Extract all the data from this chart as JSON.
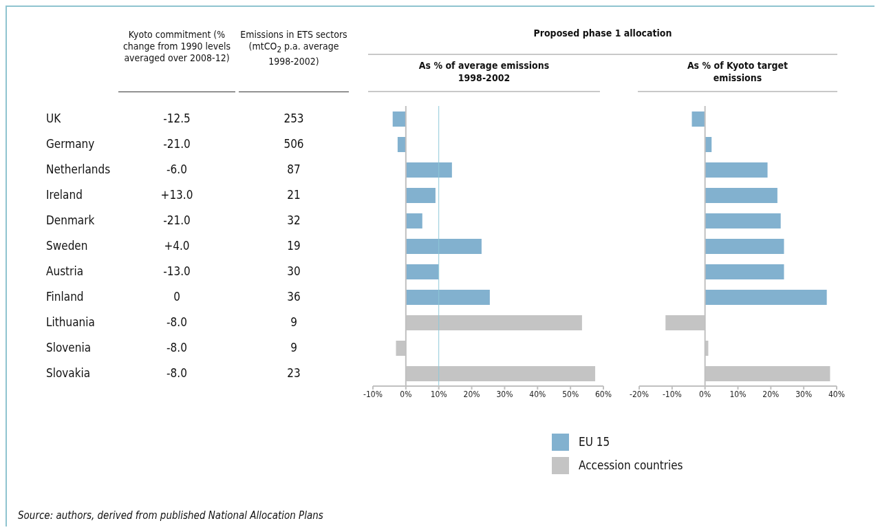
{
  "chart_data": [
    {
      "type": "other",
      "categories": [
        "UK",
        "Germany",
        "Netherlands",
        "Ireland",
        "Denmark",
        "Sweden",
        "Austria",
        "Finland",
        "Lithuania",
        "Slovenia",
        "Slovakia"
      ],
      "data_labels": true,
      "series": [
        {
          "name": "Kyoto commitment (% change from 1990 levels averaged over 2008-12)",
          "values": [
            -12.5,
            -21.0,
            -6.0,
            13.0,
            -21.0,
            4.0,
            -13.0,
            0,
            -8.0,
            -8.0,
            -8.0
          ],
          "value_labels": [
            "-12.5",
            "-21.0",
            "-6.0",
            "+13.0",
            "-21.0",
            "+4.0",
            "-13.0",
            "0",
            "-8.0",
            "-8.0",
            "-8.0"
          ]
        },
        {
          "name": "Emissions in ETS sectors (mtCO$_{2}$ p.a. average 1998-2002)",
          "values": [
            253,
            506,
            87,
            21,
            32,
            19,
            30,
            36,
            9,
            9,
            23
          ]
        }
      ],
      "annotations": [
        "Source: authors, derived from published National Allocation Plans"
      ]
    },
    {
      "type": "bar",
      "orientation": "horizontal",
      "stacked": true,
      "title": "Proposed phase 1 allocation",
      "subtitle": "As % of average emissions 1998-2002",
      "categories": [
        null,
        null,
        null,
        null,
        null,
        null,
        null,
        null,
        null,
        null,
        null
      ],
      "tick_labels": "x",
      "legend": "bottom",
      "series": [
        {
          "name": "EU 15",
          "color": "#82b1cf",
          "values": [
            -4,
            -2.5,
            14,
            9,
            5,
            23,
            10,
            25.5,
            null,
            null,
            null
          ]
        },
        {
          "name": "Accession countries",
          "color": "#c4c4c4",
          "values": [
            null,
            null,
            null,
            null,
            null,
            null,
            null,
            null,
            53.5,
            -3,
            57.5
          ]
        }
      ],
      "xlim": [
        -10,
        60
      ],
      "xticks": [
        {
          "value": -10,
          "label": "-10%"
        },
        {
          "value": 0,
          "label": "0%"
        },
        {
          "value": 10,
          "label": "10%"
        },
        {
          "value": 20,
          "label": "20%"
        },
        {
          "value": 30,
          "label": "30%"
        },
        {
          "value": 40,
          "label": "40%"
        },
        {
          "value": 50,
          "label": "50%"
        },
        {
          "value": 60,
          "label": "60%"
        }
      ],
      "ref_lines": [
        {
          "axis": "x",
          "value": 10,
          "color": "#8ec8d8"
        }
      ]
    },
    {
      "type": "bar",
      "orientation": "horizontal",
      "stacked": true,
      "title": "As % of Kyoto target emissions",
      "categories": [
        null,
        null,
        null,
        null,
        null,
        null,
        null,
        null,
        null,
        null,
        null
      ],
      "tick_labels": "x",
      "series": [
        {
          "color": "#82b1cf",
          "values": [
            -4,
            2,
            19,
            22,
            23,
            24,
            24,
            37,
            null,
            null,
            null
          ]
        },
        {
          "color": "#c4c4c4",
          "values": [
            null,
            null,
            null,
            null,
            null,
            null,
            null,
            null,
            -12,
            1,
            38
          ]
        }
      ],
      "xlim": [
        -20,
        40
      ],
      "xticks": [
        {
          "value": -20,
          "label": "-20%"
        },
        {
          "value": -10,
          "label": "-10%"
        },
        {
          "value": 0,
          "label": "0%"
        },
        {
          "value": 10,
          "label": "10%"
        },
        {
          "value": 20,
          "label": "20%"
        },
        {
          "value": 30,
          "label": "30%"
        },
        {
          "value": 40,
          "label": "40%"
        }
      ]
    }
  ]
}
